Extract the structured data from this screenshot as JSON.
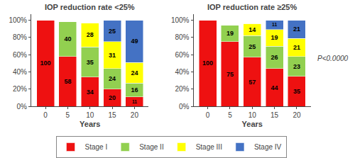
{
  "chart_data": [
    {
      "type": "bar",
      "title": "IOP reduction rate <25%",
      "x": [
        0,
        5,
        10,
        15,
        20
      ],
      "xlabel": "Years",
      "xlim": [
        -3.2,
        23.2
      ],
      "xticks": [
        0,
        5,
        10,
        15,
        20
      ],
      "ylim": [
        0,
        107
      ],
      "yticks": [
        {
          "value": 0,
          "label": "0%"
        },
        {
          "value": 20,
          "label": "20%"
        },
        {
          "value": 40,
          "label": "40%"
        },
        {
          "value": 60,
          "label": "60%"
        },
        {
          "value": 80,
          "label": "80%"
        },
        {
          "value": 100,
          "label": "100%"
        }
      ],
      "stacked": true,
      "data_labels": true,
      "grid": false,
      "legend": "bottom",
      "series": [
        {
          "name": "Stage I",
          "color": "#EE1111",
          "values": [
            100,
            58,
            34,
            20,
            11
          ]
        },
        {
          "name": "Stage II",
          "color": "#92D050",
          "values": [
            0,
            40,
            35,
            24,
            16
          ]
        },
        {
          "name": "Stage III",
          "color": "#FFFF00",
          "values": [
            0,
            0,
            28,
            31,
            24
          ]
        },
        {
          "name": "Stage IV",
          "color": "#4472C4",
          "values": [
            0,
            0,
            0,
            25,
            49
          ]
        }
      ]
    },
    {
      "type": "bar",
      "title": "IOP reduction rate ≥25%",
      "x": [
        0,
        5,
        10,
        15,
        20
      ],
      "xlabel": "Years",
      "xlim": [
        -3.2,
        23.2
      ],
      "xticks": [
        0,
        5,
        10,
        15,
        20
      ],
      "ylim": [
        0,
        107
      ],
      "yticks": [
        {
          "value": 0,
          "label": "0%"
        },
        {
          "value": 20,
          "label": "20%"
        },
        {
          "value": 40,
          "label": "40%"
        },
        {
          "value": 60,
          "label": "60%"
        },
        {
          "value": 80,
          "label": "80%"
        },
        {
          "value": 100,
          "label": "100%"
        }
      ],
      "stacked": true,
      "data_labels": true,
      "grid": false,
      "annotations": [
        "P<0.0000"
      ],
      "series": [
        {
          "name": "Stage I",
          "color": "#EE1111",
          "values": [
            100,
            75,
            57,
            44,
            35
          ]
        },
        {
          "name": "Stage II",
          "color": "#92D050",
          "values": [
            0,
            19,
            25,
            26,
            23
          ]
        },
        {
          "name": "Stage III",
          "color": "#FFFF00",
          "values": [
            0,
            0,
            14,
            19,
            21
          ]
        },
        {
          "name": "Stage IV",
          "color": "#4472C4",
          "values": [
            0,
            0,
            0,
            11,
            21
          ]
        }
      ]
    }
  ]
}
